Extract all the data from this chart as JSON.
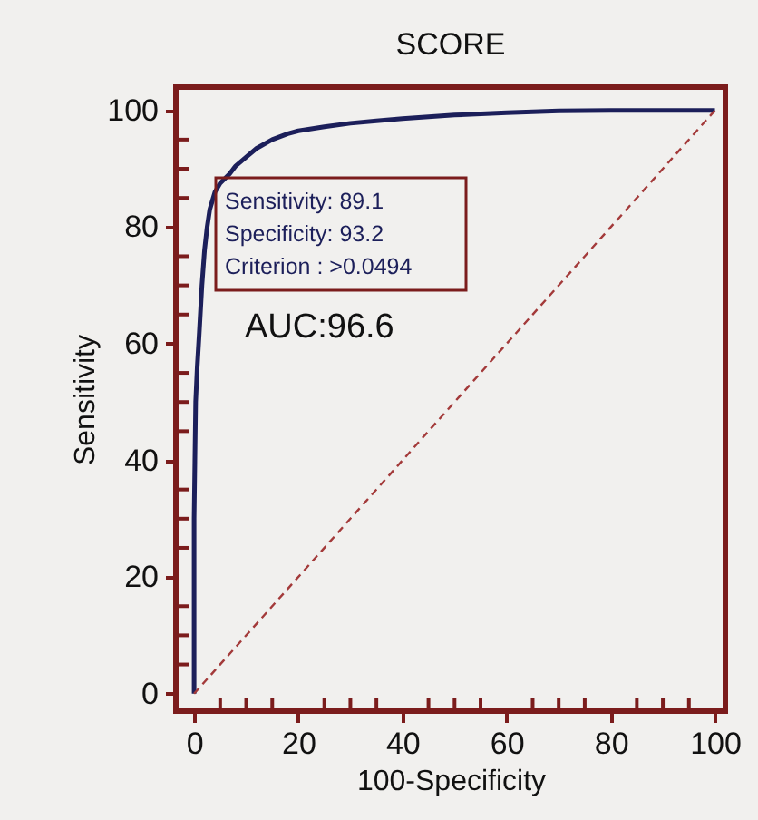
{
  "chart_data": {
    "type": "line",
    "title": "SCORE",
    "xlabel": "100-Specificity",
    "ylabel": "Sensitivity",
    "xlim": [
      -3.5,
      102
    ],
    "ylim": [
      -3,
      104
    ],
    "xticks": [
      0,
      {
        "value": 5,
        "label": null
      },
      {
        "value": 10,
        "label": null
      },
      {
        "value": 15,
        "label": null
      },
      20,
      {
        "value": 25,
        "label": null
      },
      {
        "value": 30,
        "label": null
      },
      {
        "value": 35,
        "label": null
      },
      40,
      {
        "value": 45,
        "label": null
      },
      {
        "value": 50,
        "label": null
      },
      {
        "value": 55,
        "label": null
      },
      60,
      {
        "value": 65,
        "label": null
      },
      {
        "value": 70,
        "label": null
      },
      {
        "value": 75,
        "label": null
      },
      80,
      {
        "value": 85,
        "label": null
      },
      {
        "value": 90,
        "label": null
      },
      {
        "value": 95,
        "label": null
      },
      100
    ],
    "yticks": [
      0,
      {
        "value": 5,
        "label": null
      },
      {
        "value": 10,
        "label": null
      },
      {
        "value": 15,
        "label": null
      },
      20,
      {
        "value": 25,
        "label": null
      },
      {
        "value": 30,
        "label": null
      },
      {
        "value": 35,
        "label": null
      },
      40,
      {
        "value": 45,
        "label": null
      },
      {
        "value": 50,
        "label": null
      },
      {
        "value": 55,
        "label": null
      },
      60,
      {
        "value": 65,
        "label": null
      },
      {
        "value": 70,
        "label": null
      },
      {
        "value": 75,
        "label": null
      },
      80,
      {
        "value": 85,
        "label": null
      },
      {
        "value": 90,
        "label": null
      },
      {
        "value": 95,
        "label": null
      },
      100
    ],
    "grid": false,
    "marker": "none",
    "series": [
      {
        "color": "#1c1f5a",
        "line_style": "solid",
        "x": [
          0,
          0,
          0.3,
          0.6,
          1,
          1.5,
          2,
          2.5,
          3,
          4,
          5,
          6.8,
          8,
          10,
          12,
          15,
          18,
          20,
          25,
          30,
          35,
          40,
          50,
          60,
          70,
          80,
          100
        ],
        "values": [
          0,
          30,
          50,
          56,
          62,
          70,
          76,
          80,
          83,
          86,
          87.5,
          89.1,
          90.5,
          92,
          93.5,
          95,
          96,
          96.5,
          97.2,
          97.8,
          98.2,
          98.6,
          99.2,
          99.6,
          99.9,
          100,
          100
        ]
      },
      {
        "color": "#a33a3a",
        "line_style": "dashed",
        "x": [
          0,
          100
        ],
        "values": [
          0,
          100
        ]
      }
    ],
    "annotations": [
      "Sensitivity: 89.1",
      "Specificity: 93.2",
      "Criterion : >0.0494",
      "AUC:96.6"
    ]
  }
}
